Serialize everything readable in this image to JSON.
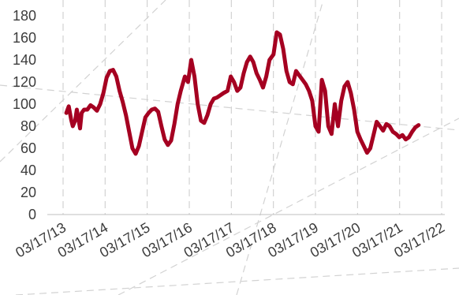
{
  "chart_data": {
    "type": "line",
    "title": "",
    "xlabel": "",
    "ylabel": "",
    "ylim": [
      0,
      180
    ],
    "yticks": [
      "0",
      "20",
      "40",
      "60",
      "80",
      "100",
      "120",
      "140",
      "160",
      "180"
    ],
    "xlim": [
      "2013-03-17",
      "2022-03-17"
    ],
    "xticks": [
      {
        "date": "2013-03-17",
        "label": "03/17/13"
      },
      {
        "date": "2014-03-17",
        "label": "03/17/14"
      },
      {
        "date": "2015-03-17",
        "label": "03/17/15"
      },
      {
        "date": "2016-03-17",
        "label": "03/17/16"
      },
      {
        "date": "2017-03-17",
        "label": "03/17/17"
      },
      {
        "date": "2018-03-17",
        "label": "03/17/18"
      },
      {
        "date": "2019-03-17",
        "label": "03/17/19"
      },
      {
        "date": "2020-03-17",
        "label": "03/17/20"
      },
      {
        "date": "2021-03-17",
        "label": "03/17/21"
      },
      {
        "date": "2022-03-17",
        "label": "03/17/22"
      }
    ],
    "grid": true,
    "legend": "none",
    "line_color": "#a50021",
    "series": [
      {
        "values": [
          [
            "2013-04-14",
            92
          ],
          [
            "2013-05-05",
            98
          ],
          [
            "2013-05-26",
            86
          ],
          [
            "2013-06-09",
            80
          ],
          [
            "2013-06-30",
            85
          ],
          [
            "2013-07-14",
            95
          ],
          [
            "2013-07-28",
            87
          ],
          [
            "2013-08-11",
            78
          ],
          [
            "2013-08-25",
            92
          ],
          [
            "2013-09-15",
            95
          ],
          [
            "2013-10-13",
            95
          ],
          [
            "2013-11-10",
            99
          ],
          [
            "2013-12-08",
            97
          ],
          [
            "2014-01-05",
            94
          ],
          [
            "2014-02-02",
            100
          ],
          [
            "2014-03-02",
            110
          ],
          [
            "2014-03-30",
            124
          ],
          [
            "2014-04-27",
            130
          ],
          [
            "2014-05-25",
            131
          ],
          [
            "2014-06-22",
            125
          ],
          [
            "2014-07-20",
            112
          ],
          [
            "2014-08-17",
            102
          ],
          [
            "2014-09-14",
            90
          ],
          [
            "2014-10-12",
            75
          ],
          [
            "2014-11-09",
            60
          ],
          [
            "2014-12-07",
            55
          ],
          [
            "2015-01-04",
            62
          ],
          [
            "2015-02-01",
            75
          ],
          [
            "2015-03-01",
            88
          ],
          [
            "2015-03-29",
            92
          ],
          [
            "2015-04-26",
            95
          ],
          [
            "2015-05-24",
            96
          ],
          [
            "2015-06-21",
            93
          ],
          [
            "2015-07-19",
            80
          ],
          [
            "2015-08-16",
            68
          ],
          [
            "2015-09-13",
            63
          ],
          [
            "2015-10-11",
            67
          ],
          [
            "2015-11-08",
            82
          ],
          [
            "2015-12-06",
            100
          ],
          [
            "2016-01-03",
            112
          ],
          [
            "2016-02-07",
            125
          ],
          [
            "2016-03-06",
            120
          ],
          [
            "2016-04-03",
            140
          ],
          [
            "2016-05-01",
            125
          ],
          [
            "2016-05-29",
            100
          ],
          [
            "2016-06-26",
            85
          ],
          [
            "2016-07-24",
            83
          ],
          [
            "2016-08-21",
            90
          ],
          [
            "2016-09-18",
            100
          ],
          [
            "2016-10-16",
            105
          ],
          [
            "2016-11-13",
            106
          ],
          [
            "2016-12-11",
            108
          ],
          [
            "2017-01-08",
            110
          ],
          [
            "2017-02-12",
            112
          ],
          [
            "2017-03-12",
            125
          ],
          [
            "2017-04-09",
            120
          ],
          [
            "2017-05-07",
            112
          ],
          [
            "2017-06-04",
            115
          ],
          [
            "2017-07-02",
            128
          ],
          [
            "2017-07-30",
            138
          ],
          [
            "2017-08-27",
            143
          ],
          [
            "2017-09-24",
            138
          ],
          [
            "2017-10-22",
            128
          ],
          [
            "2017-11-19",
            122
          ],
          [
            "2017-12-17",
            115
          ],
          [
            "2018-01-14",
            125
          ],
          [
            "2018-02-11",
            140
          ],
          [
            "2018-03-18",
            145
          ],
          [
            "2018-04-15",
            165
          ],
          [
            "2018-05-13",
            163
          ],
          [
            "2018-06-10",
            150
          ],
          [
            "2018-07-08",
            130
          ],
          [
            "2018-08-05",
            120
          ],
          [
            "2018-09-02",
            118
          ],
          [
            "2018-09-30",
            130
          ],
          [
            "2018-10-28",
            126
          ],
          [
            "2018-11-25",
            122
          ],
          [
            "2018-12-23",
            118
          ],
          [
            "2019-01-20",
            112
          ],
          [
            "2019-02-17",
            103
          ],
          [
            "2019-03-17",
            80
          ],
          [
            "2019-04-14",
            75
          ],
          [
            "2019-05-12",
            122
          ],
          [
            "2019-06-09",
            112
          ],
          [
            "2019-07-07",
            80
          ],
          [
            "2019-08-04",
            73
          ],
          [
            "2019-09-01",
            100
          ],
          [
            "2019-09-29",
            80
          ],
          [
            "2019-10-27",
            103
          ],
          [
            "2019-11-24",
            116
          ],
          [
            "2019-12-22",
            120
          ],
          [
            "2020-01-19",
            110
          ],
          [
            "2020-02-16",
            95
          ],
          [
            "2020-03-15",
            75
          ],
          [
            "2020-04-12",
            68
          ],
          [
            "2020-05-10",
            62
          ],
          [
            "2020-06-07",
            56
          ],
          [
            "2020-07-05",
            60
          ],
          [
            "2020-08-02",
            72
          ],
          [
            "2020-08-30",
            84
          ],
          [
            "2020-09-27",
            80
          ],
          [
            "2020-10-25",
            76
          ],
          [
            "2020-11-22",
            82
          ],
          [
            "2020-12-20",
            80
          ],
          [
            "2021-01-17",
            75
          ],
          [
            "2021-02-14",
            73
          ],
          [
            "2021-03-14",
            70
          ],
          [
            "2021-04-11",
            72
          ],
          [
            "2021-05-09",
            68
          ],
          [
            "2021-06-06",
            70
          ],
          [
            "2021-07-04",
            75
          ],
          [
            "2021-08-01",
            79
          ],
          [
            "2021-08-29",
            81
          ]
        ]
      }
    ]
  }
}
